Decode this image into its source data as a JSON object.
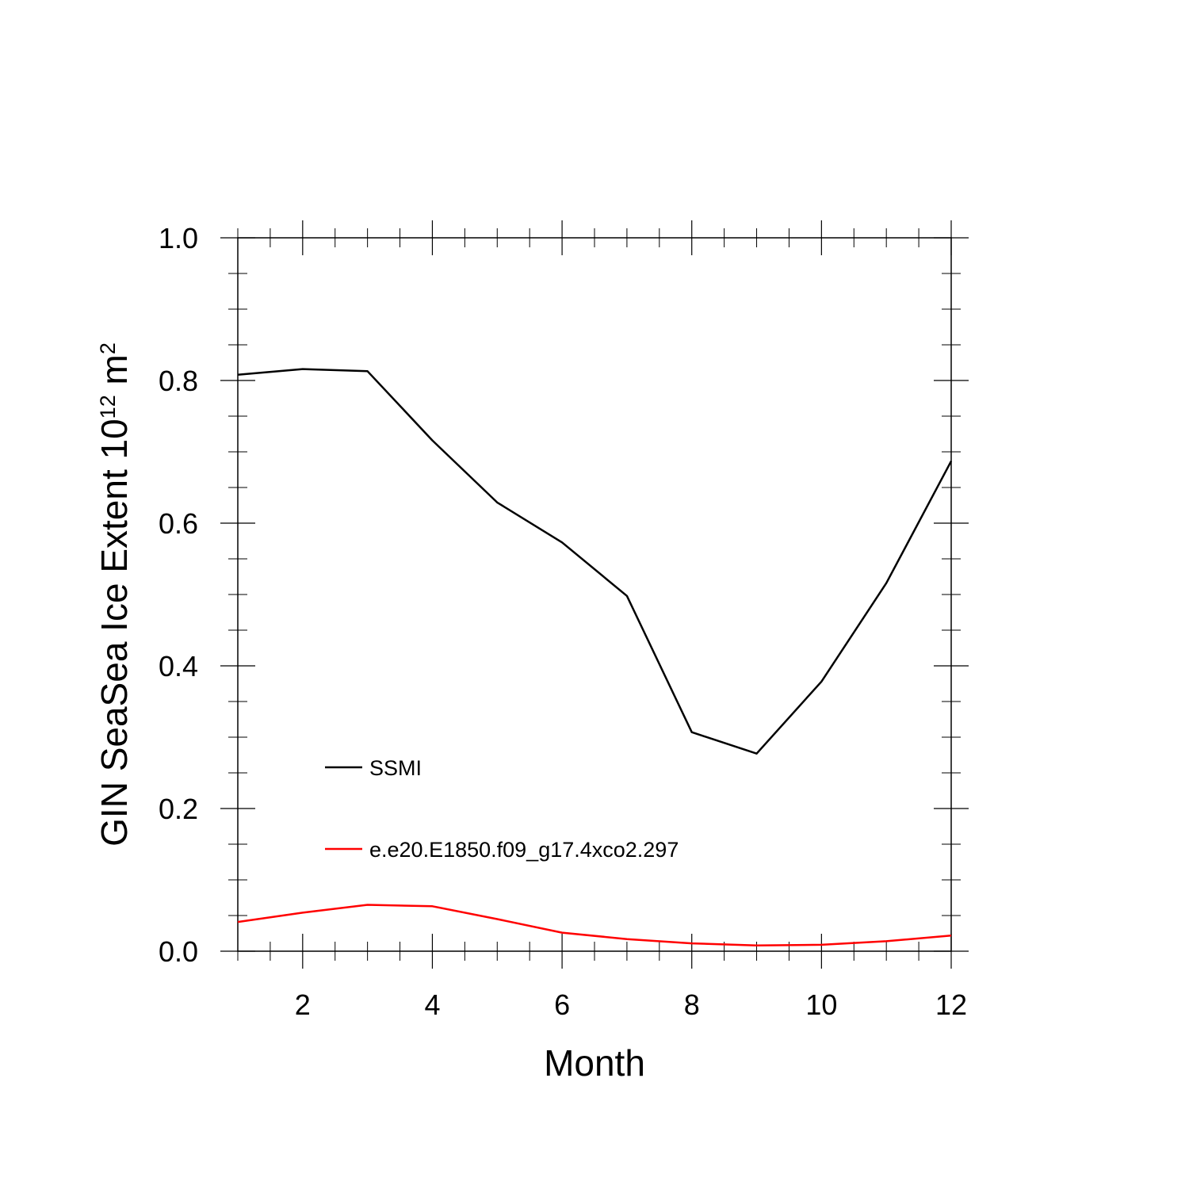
{
  "chart_data": {
    "type": "line",
    "title": "",
    "xlabel": "Month",
    "ylabel": {
      "prefix": "GIN SeaSea Ice Extent 10",
      "exponent": "12",
      "unit": " m",
      "unit_exponent": "2"
    },
    "xlim": [
      1,
      12
    ],
    "ylim": [
      0.0,
      1.0
    ],
    "x_ticks": [
      2,
      4,
      6,
      8,
      10,
      12
    ],
    "x_tick_labels": [
      "2",
      "4",
      "6",
      "8",
      "10",
      "12"
    ],
    "y_ticks": [
      0.0,
      0.2,
      0.4,
      0.6,
      0.8,
      1.0
    ],
    "y_tick_labels": [
      "0.0",
      "0.2",
      "0.4",
      "0.6",
      "0.8",
      "1.0"
    ],
    "x": [
      1,
      2,
      3,
      4,
      5,
      6,
      7,
      8,
      9,
      10,
      11,
      12
    ],
    "series": [
      {
        "name": "SSMI",
        "color": "#000000",
        "values": [
          0.808,
          0.816,
          0.813,
          0.716,
          0.629,
          0.573,
          0.498,
          0.307,
          0.277,
          0.378,
          0.516,
          0.687
        ]
      },
      {
        "name": "e.e20.E1850.f09_g17.4xco2.297",
        "color": "#ff0000",
        "values": [
          0.041,
          0.054,
          0.065,
          0.063,
          0.045,
          0.026,
          0.017,
          0.011,
          0.008,
          0.009,
          0.014,
          0.022
        ]
      }
    ],
    "legend_position": "lower-left",
    "grid": false
  }
}
